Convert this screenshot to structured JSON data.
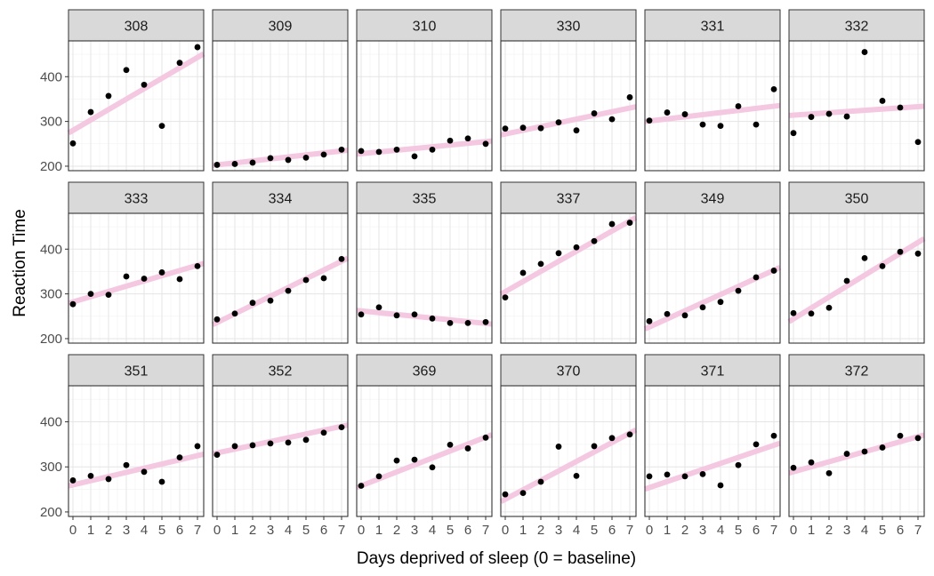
{
  "chart_data": {
    "type": "scatter",
    "xlabel": "Days deprived of sleep (0 = baseline)",
    "ylabel": "Reaction Time",
    "x": [
      0,
      1,
      2,
      3,
      4,
      5,
      6,
      7
    ],
    "xlim": [
      -0.25,
      7.35
    ],
    "ylim": [
      190,
      480
    ],
    "yticks": [
      200,
      300,
      400
    ],
    "xticks": [
      0,
      1,
      2,
      3,
      4,
      5,
      6,
      7
    ],
    "grid": true,
    "fit_line_color": "#f4c6e0",
    "point_color": "#000000",
    "strip_fill": "#d9d9d9",
    "panels": [
      {
        "subject": "308",
        "y": [
          251,
          321,
          357,
          415,
          382,
          290,
          431,
          466
        ],
        "fit": [
          280,
          443
        ]
      },
      {
        "subject": "309",
        "y": [
          203,
          205,
          208,
          218,
          214,
          219,
          226,
          237
        ],
        "fit": [
          203,
          234
        ]
      },
      {
        "subject": "310",
        "y": [
          234,
          232,
          237,
          222,
          237,
          257,
          262,
          250
        ],
        "fit": [
          228,
          255
        ]
      },
      {
        "subject": "330",
        "y": [
          284,
          286,
          285,
          298,
          280,
          318,
          305,
          354
        ],
        "fit": [
          272,
          330
        ]
      },
      {
        "subject": "331",
        "y": [
          302,
          320,
          316,
          293,
          290,
          334,
          293,
          372
        ],
        "fit": [
          301,
          334
        ]
      },
      {
        "subject": "332",
        "y": [
          274,
          310,
          317,
          311,
          455,
          346,
          331,
          254
        ],
        "fit": [
          314,
          333
        ]
      },
      {
        "subject": "333",
        "y": [
          277,
          300,
          298,
          339,
          334,
          348,
          333,
          362
        ],
        "fit": [
          282,
          364
        ]
      },
      {
        "subject": "334",
        "y": [
          243,
          256,
          280,
          285,
          307,
          331,
          335,
          378
        ],
        "fit": [
          236,
          373
        ]
      },
      {
        "subject": "335",
        "y": [
          254,
          270,
          252,
          254,
          245,
          235,
          235,
          237
        ],
        "fit": [
          262,
          234
        ]
      },
      {
        "subject": "337",
        "y": [
          292,
          347,
          367,
          391,
          404,
          418,
          456,
          459
        ],
        "fit": [
          305,
          463
        ]
      },
      {
        "subject": "349",
        "y": [
          239,
          255,
          252,
          270,
          282,
          307,
          337,
          352
        ],
        "fit": [
          226,
          353
        ]
      },
      {
        "subject": "350",
        "y": [
          257,
          256,
          269,
          329,
          380,
          362,
          394,
          390
        ],
        "fit": [
          244,
          415
        ]
      },
      {
        "subject": "351",
        "y": [
          270,
          280,
          273,
          304,
          289,
          267,
          321,
          346
        ],
        "fit": [
          260,
          325
        ]
      },
      {
        "subject": "352",
        "y": [
          327,
          346,
          348,
          352,
          354,
          360,
          376,
          388
        ],
        "fit": [
          331,
          390
        ]
      },
      {
        "subject": "369",
        "y": [
          258,
          279,
          314,
          316,
          299,
          349,
          341,
          365
        ],
        "fit": [
          258,
          366
        ]
      },
      {
        "subject": "370",
        "y": [
          239,
          242,
          267,
          345,
          280,
          346,
          364,
          372
        ],
        "fit": [
          228,
          375
        ]
      },
      {
        "subject": "371",
        "y": [
          279,
          283,
          279,
          284,
          259,
          304,
          350,
          369
        ],
        "fit": [
          254,
          348
        ]
      },
      {
        "subject": "372",
        "y": [
          298,
          310,
          286,
          329,
          334,
          343,
          369,
          364
        ],
        "fit": [
          289,
          367
        ]
      }
    ]
  }
}
